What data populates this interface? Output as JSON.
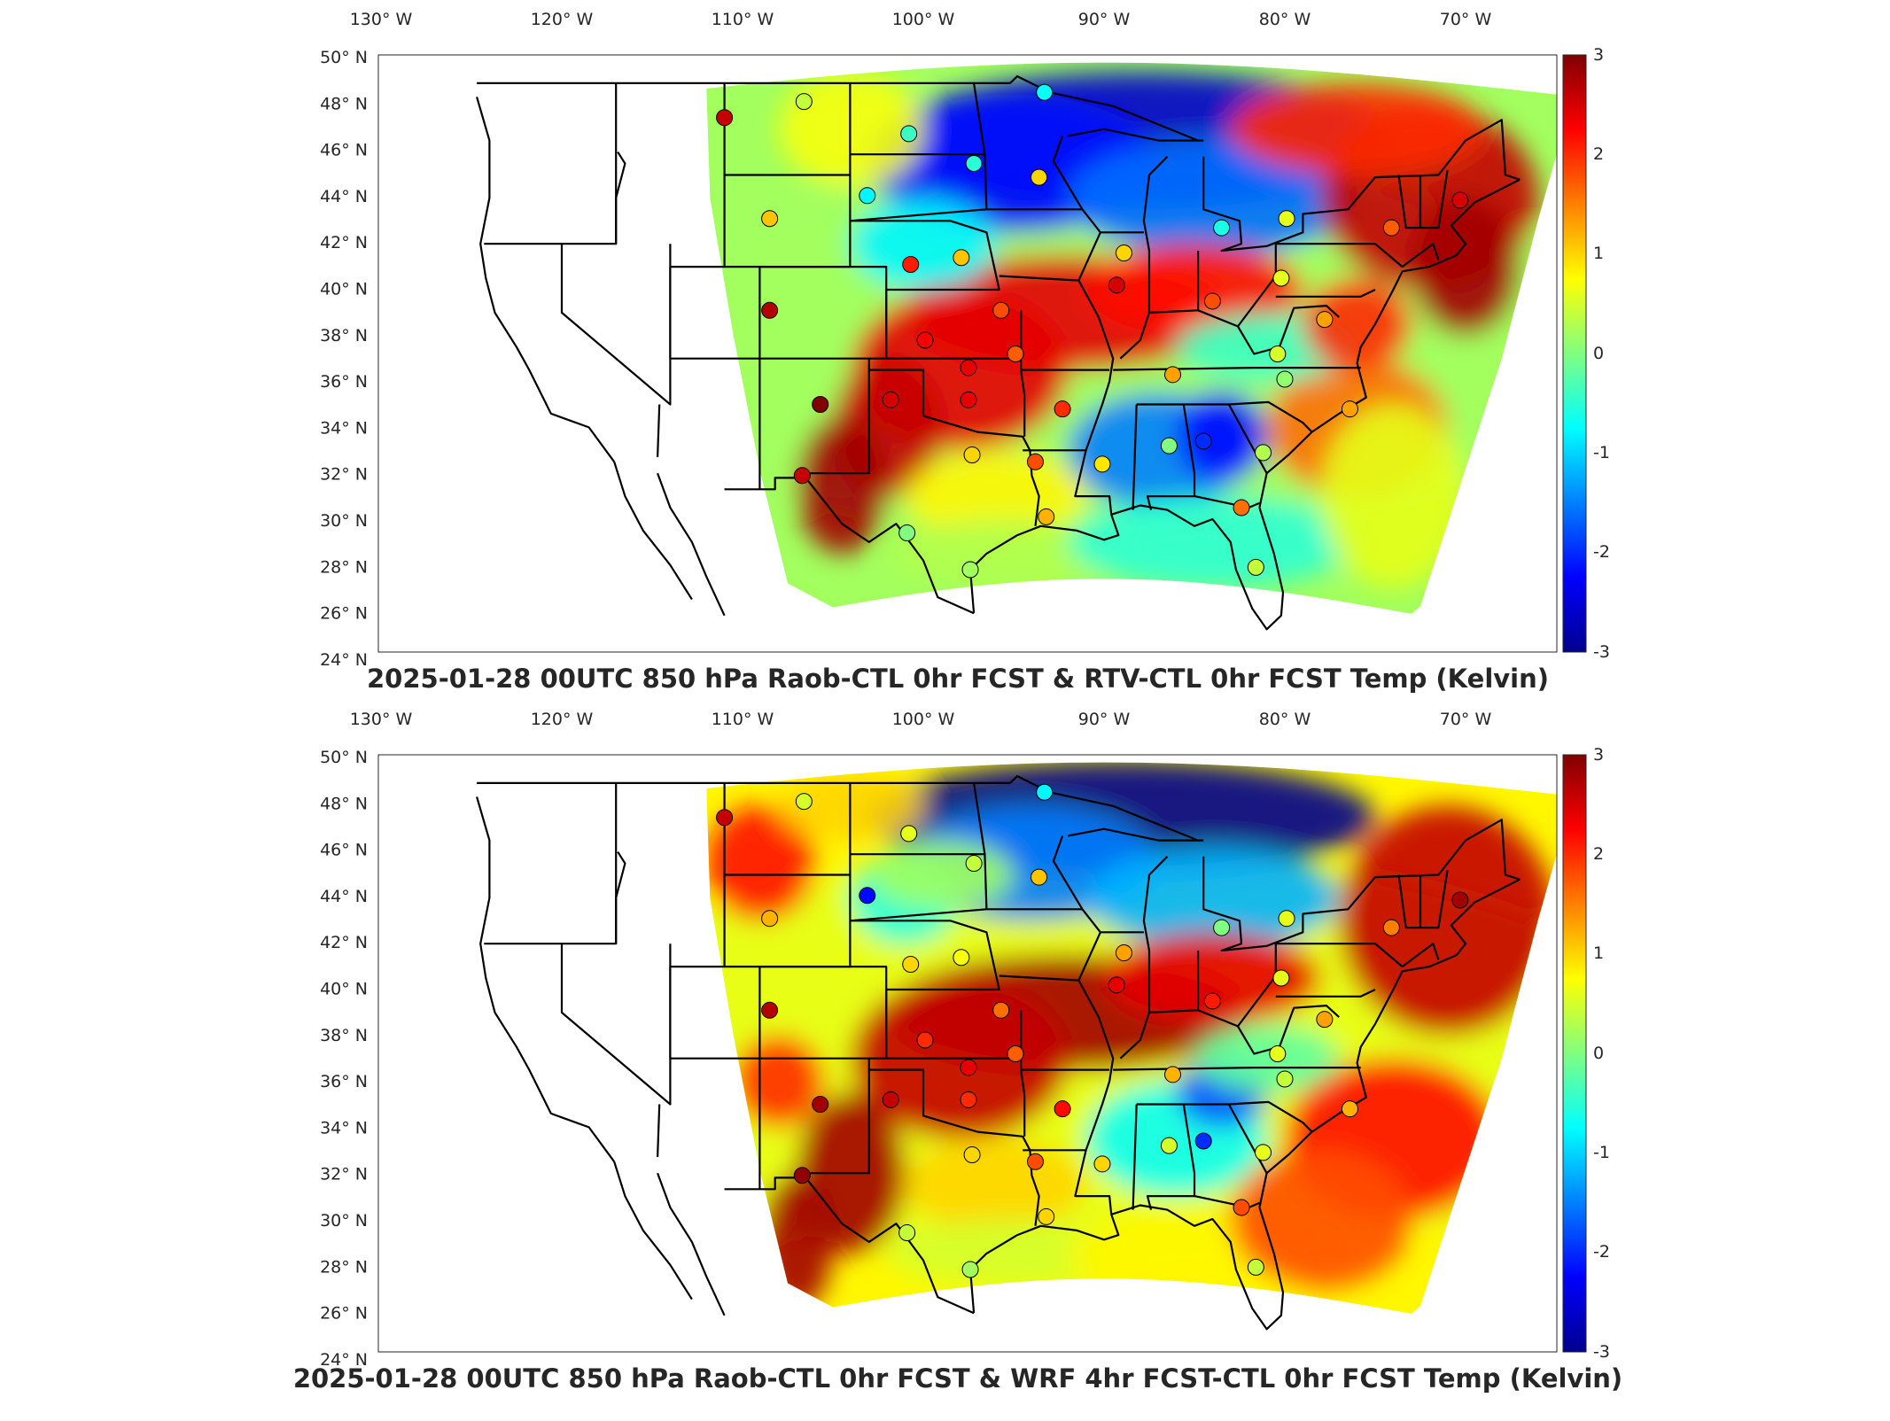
{
  "colormap": "jet",
  "colors": {
    "jet": [
      "#00008f",
      "#0000ff",
      "#0080ff",
      "#00ffff",
      "#80ff80",
      "#ffff00",
      "#ff8000",
      "#ff0000",
      "#800000"
    ],
    "border": "#000000",
    "frame": "#262626"
  },
  "lon_ticks": [
    "130° W",
    "120° W",
    "110° W",
    "100° W",
    "90° W",
    "80° W",
    "70° W"
  ],
  "lat_ticks": [
    "50° N",
    "48° N",
    "46° N",
    "44° N",
    "42° N",
    "40° N",
    "38° N",
    "36° N",
    "34° N",
    "32° N",
    "30° N",
    "28° N",
    "26° N",
    "24° N"
  ],
  "colorbar": {
    "ticks": [
      "3",
      "2",
      "1",
      "0",
      "-1",
      "-2",
      "-3"
    ],
    "range": [
      -3,
      3
    ]
  },
  "panels": [
    {
      "id": "top",
      "title": "2025-01-28 00UTC 850 hPa Raob-CTL 0hr FCST & RTV-CTL 0hr FCST Temp (Kelvin)"
    },
    {
      "id": "bottom",
      "title": "2025-01-28 00UTC 850 hPa Raob-CTL 0hr FCST & WRF 4hr FCST-CTL 0hr FCST Temp (Kelvin)"
    }
  ],
  "stations": [
    {
      "lon": -111.0,
      "lat": 47.5,
      "top": 2.6,
      "bottom": 2.6
    },
    {
      "lon": -106.6,
      "lat": 48.2,
      "top": 0.4,
      "bottom": 0.5
    },
    {
      "lon": -100.8,
      "lat": 46.8,
      "top": -0.4,
      "bottom": 0.6
    },
    {
      "lon": -97.2,
      "lat": 45.5,
      "top": -0.5,
      "bottom": 0.4
    },
    {
      "lon": -93.6,
      "lat": 44.9,
      "top": 1.0,
      "bottom": 1.1
    },
    {
      "lon": -103.1,
      "lat": 44.1,
      "top": -0.8,
      "bottom": -2.2
    },
    {
      "lon": -108.5,
      "lat": 43.1,
      "top": 1.1,
      "bottom": 1.2
    },
    {
      "lon": -108.5,
      "lat": 39.1,
      "top": 2.7,
      "bottom": 2.7
    },
    {
      "lon": -105.7,
      "lat": 35.0,
      "top": 3.0,
      "bottom": 2.8
    },
    {
      "lon": -106.7,
      "lat": 31.9,
      "top": 2.6,
      "bottom": 2.9
    },
    {
      "lon": -100.7,
      "lat": 41.1,
      "top": 2.1,
      "bottom": 1.0
    },
    {
      "lon": -97.9,
      "lat": 41.4,
      "top": 1.1,
      "bottom": 0.7
    },
    {
      "lon": -99.9,
      "lat": 37.8,
      "top": 2.3,
      "bottom": 2.0
    },
    {
      "lon": -97.5,
      "lat": 36.6,
      "top": 2.4,
      "bottom": 2.4
    },
    {
      "lon": -101.8,
      "lat": 35.2,
      "top": 2.5,
      "bottom": 2.6
    },
    {
      "lon": -97.5,
      "lat": 35.2,
      "top": 2.4,
      "bottom": 2.0
    },
    {
      "lon": -95.7,
      "lat": 39.1,
      "top": 1.8,
      "bottom": 1.6
    },
    {
      "lon": -94.9,
      "lat": 37.2,
      "top": 1.7,
      "bottom": 1.7
    },
    {
      "lon": -92.3,
      "lat": 34.8,
      "top": 2.0,
      "bottom": 2.2
    },
    {
      "lon": -97.3,
      "lat": 32.8,
      "top": 1.0,
      "bottom": 1.0
    },
    {
      "lon": -93.8,
      "lat": 32.5,
      "top": 1.8,
      "bottom": 1.8
    },
    {
      "lon": -93.2,
      "lat": 30.1,
      "top": 1.2,
      "bottom": 1.0
    },
    {
      "lon": -100.9,
      "lat": 29.4,
      "top": 0.0,
      "bottom": 0.4
    },
    {
      "lon": -97.4,
      "lat": 27.8,
      "top": 0.2,
      "bottom": 0.2
    },
    {
      "lon": -88.9,
      "lat": 41.6,
      "top": 1.0,
      "bottom": 1.3
    },
    {
      "lon": -89.3,
      "lat": 40.2,
      "top": 2.5,
      "bottom": 2.4
    },
    {
      "lon": -84.0,
      "lat": 39.5,
      "top": 1.8,
      "bottom": 2.1
    },
    {
      "lon": -86.2,
      "lat": 36.3,
      "top": 1.3,
      "bottom": 1.2
    },
    {
      "lon": -86.4,
      "lat": 33.2,
      "top": 0.0,
      "bottom": 0.5
    },
    {
      "lon": -84.5,
      "lat": 33.4,
      "top": -2.0,
      "bottom": -2.0
    },
    {
      "lon": -90.1,
      "lat": 32.4,
      "top": 0.9,
      "bottom": 1.0
    },
    {
      "lon": -83.5,
      "lat": 42.7,
      "top": -0.6,
      "bottom": 0.0
    },
    {
      "lon": -79.9,
      "lat": 43.1,
      "top": 0.6,
      "bottom": 0.6
    },
    {
      "lon": -80.2,
      "lat": 40.5,
      "top": 0.6,
      "bottom": 0.6
    },
    {
      "lon": -80.4,
      "lat": 37.2,
      "top": 0.5,
      "bottom": 0.6
    },
    {
      "lon": -80.0,
      "lat": 36.1,
      "top": 0.1,
      "bottom": 0.4
    },
    {
      "lon": -81.2,
      "lat": 32.9,
      "top": 0.3,
      "bottom": 0.6
    },
    {
      "lon": -81.6,
      "lat": 27.9,
      "top": 0.4,
      "bottom": 0.4
    },
    {
      "lon": -82.4,
      "lat": 30.5,
      "top": 1.6,
      "bottom": 1.8
    },
    {
      "lon": -74.1,
      "lat": 42.7,
      "top": 1.7,
      "bottom": 1.5
    },
    {
      "lon": -77.8,
      "lat": 38.7,
      "top": 1.3,
      "bottom": 1.3
    },
    {
      "lon": -76.4,
      "lat": 34.8,
      "top": 1.3,
      "bottom": 1.2
    },
    {
      "lon": -70.3,
      "lat": 43.9,
      "top": 2.5,
      "bottom": 2.8
    },
    {
      "lon": -93.3,
      "lat": 48.6,
      "top": -0.7,
      "bottom": -0.8
    }
  ]
}
